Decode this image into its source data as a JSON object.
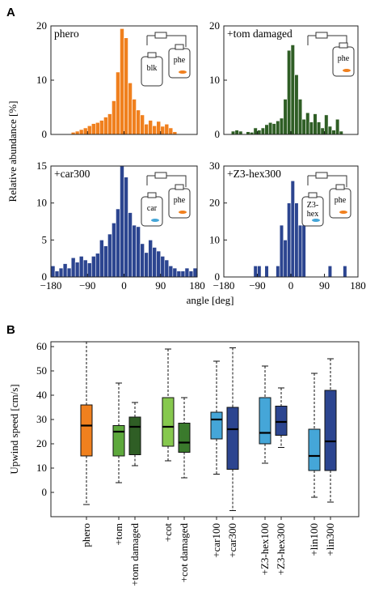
{
  "figure": {
    "panel_a_letter": "A",
    "panel_b_letter": "B"
  },
  "chart_data": [
    {
      "type": "bar",
      "title": "phero",
      "jar_labels": [
        "blk",
        "phe"
      ],
      "color": "#f0801e",
      "xlabel": "angle [deg]",
      "ylabel": "Relative abundance [%]",
      "xlim": [
        -180,
        180
      ],
      "ylim": [
        0,
        20
      ],
      "yticks": [
        0,
        10,
        20
      ],
      "xticks": [
        -180,
        -90,
        0,
        90,
        180
      ],
      "bin_width": 10,
      "bin_centers": [
        -125,
        -115,
        -105,
        -95,
        -85,
        -75,
        -65,
        -55,
        -45,
        -35,
        -25,
        -15,
        -5,
        5,
        15,
        25,
        35,
        45,
        55,
        65,
        75,
        85,
        95,
        105,
        115,
        125
      ],
      "values": [
        0.4,
        0.6,
        0.9,
        1.2,
        1.6,
        2.0,
        2.2,
        2.6,
        3.2,
        3.8,
        6.2,
        11.5,
        19.5,
        17.8,
        9.5,
        6.5,
        4.5,
        3.6,
        1.9,
        2.6,
        1.6,
        2.4,
        1.5,
        1.9,
        1.2,
        0.5
      ]
    },
    {
      "type": "bar",
      "title": "+tom damaged",
      "jar_labels": [
        "phe"
      ],
      "color": "#2f5e25",
      "xlabel": "angle [deg]",
      "ylabel": "Relative abundance [%]",
      "xlim": [
        -180,
        180
      ],
      "ylim": [
        0,
        20
      ],
      "yticks": [
        0,
        10,
        20
      ],
      "xticks": [
        -180,
        -90,
        0,
        90,
        180
      ],
      "bin_width": 10,
      "bin_centers": [
        -155,
        -145,
        -135,
        -125,
        -115,
        -105,
        -95,
        -85,
        -75,
        -65,
        -55,
        -45,
        -35,
        -25,
        -15,
        -5,
        5,
        15,
        25,
        35,
        45,
        55,
        65,
        75,
        85,
        95,
        105,
        115,
        125,
        135
      ],
      "values": [
        0.6,
        0.8,
        0.6,
        0,
        0.5,
        0.4,
        1.2,
        0.8,
        1.2,
        1.8,
        2.2,
        2.0,
        2.5,
        3.0,
        6.5,
        15.5,
        16.5,
        11.0,
        6.5,
        2.8,
        4.0,
        2.3,
        3.8,
        2.3,
        1.2,
        3.6,
        1.5,
        0.8,
        2.8,
        0.6
      ]
    },
    {
      "type": "bar",
      "title": "+car300",
      "jar_labels": [
        "car",
        "phe"
      ],
      "color": "#2c4590",
      "xlabel": "angle [deg]",
      "ylabel": "Relative abundance [%]",
      "xlim": [
        -180,
        180
      ],
      "ylim": [
        0,
        15
      ],
      "yticks": [
        0,
        5,
        10,
        15
      ],
      "xticks": [
        -180,
        -90,
        0,
        90,
        180
      ],
      "bin_width": 10,
      "bin_centers": [
        -175,
        -165,
        -155,
        -145,
        -135,
        -125,
        -115,
        -105,
        -95,
        -85,
        -75,
        -65,
        -55,
        -45,
        -35,
        -25,
        -15,
        -5,
        5,
        15,
        25,
        35,
        45,
        55,
        65,
        75,
        85,
        95,
        105,
        115,
        125,
        135,
        145,
        155,
        165,
        175
      ],
      "values": [
        1.5,
        0.8,
        1.2,
        1.8,
        1.2,
        2.6,
        2.0,
        2.8,
        2.3,
        1.9,
        2.8,
        3.2,
        5.0,
        4.2,
        5.8,
        7.3,
        9.2,
        15.0,
        13.5,
        8.7,
        7.0,
        6.8,
        4.5,
        3.3,
        5.0,
        4.0,
        3.5,
        2.8,
        2.3,
        1.5,
        1.2,
        0.8,
        0.8,
        1.2,
        0.8,
        1.2
      ]
    },
    {
      "type": "bar",
      "title": "+Z3-hex300",
      "jar_labels": [
        "Z3-hex",
        "phe"
      ],
      "color": "#2c4590",
      "xlabel": "angle [deg]",
      "ylabel": "Relative abundance [%]",
      "xlim": [
        -180,
        180
      ],
      "ylim": [
        0,
        30
      ],
      "yticks": [
        0,
        10,
        20,
        30
      ],
      "xticks": [
        -180,
        -90,
        0,
        90,
        180
      ],
      "bin_width": 10,
      "bin_centers": [
        -95,
        -85,
        -65,
        -35,
        -25,
        -15,
        -5,
        5,
        15,
        25,
        35,
        105,
        145
      ],
      "values": [
        3,
        3,
        3,
        3,
        14,
        10,
        20,
        26,
        20,
        14,
        14,
        3,
        3
      ]
    },
    {
      "type": "box",
      "ylabel": "Upwind speed [cm/s]",
      "ylim": [
        -10,
        62
      ],
      "yticks": [
        0,
        10,
        20,
        30,
        40,
        50,
        60
      ],
      "groups": [
        {
          "label": "phero",
          "color": "#f0801e",
          "whisker_low": -5,
          "q1": 15,
          "median": 27.5,
          "q3": 36,
          "whisker_high": 62
        },
        {
          "label": "+tom",
          "color": "#5da83c",
          "whisker_low": 4,
          "q1": 15,
          "median": 25,
          "q3": 27.5,
          "whisker_high": 45
        },
        {
          "label": "+tom damaged",
          "color": "#2f5e25",
          "whisker_low": 11,
          "q1": 15.5,
          "median": 27,
          "q3": 31,
          "whisker_high": 37
        },
        {
          "label": "+cot",
          "color": "#86c84e",
          "whisker_low": 13,
          "q1": 19,
          "median": 27,
          "q3": 39,
          "whisker_high": 59
        },
        {
          "label": "+cot damaged",
          "color": "#3a7a2c",
          "whisker_low": 6,
          "q1": 16.5,
          "median": 20.5,
          "q3": 28.5,
          "whisker_high": 39
        },
        {
          "label": "+car100",
          "color": "#45a6d8",
          "whisker_low": 7.5,
          "q1": 22,
          "median": 30,
          "q3": 33,
          "whisker_high": 54
        },
        {
          "label": "+car300",
          "color": "#2c4590",
          "whisker_low": -7.5,
          "q1": 9.5,
          "median": 26,
          "q3": 35,
          "whisker_high": 59.5
        },
        {
          "label": "+Z3-hex100",
          "color": "#45a6d8",
          "whisker_low": 12,
          "q1": 20,
          "median": 24.5,
          "q3": 39,
          "whisker_high": 52
        },
        {
          "label": "+Z3-hex300",
          "color": "#2c4590",
          "whisker_low": 18.5,
          "q1": 23.5,
          "median": 29,
          "q3": 35.5,
          "whisker_high": 43
        },
        {
          "label": "+lin100",
          "color": "#45a6d8",
          "whisker_low": -2,
          "q1": 9,
          "median": 15,
          "q3": 26,
          "whisker_high": 49
        },
        {
          "label": "+lin300",
          "color": "#2c4590",
          "whisker_low": -4,
          "q1": 9,
          "median": 21,
          "q3": 42,
          "whisker_high": 55
        }
      ]
    }
  ]
}
